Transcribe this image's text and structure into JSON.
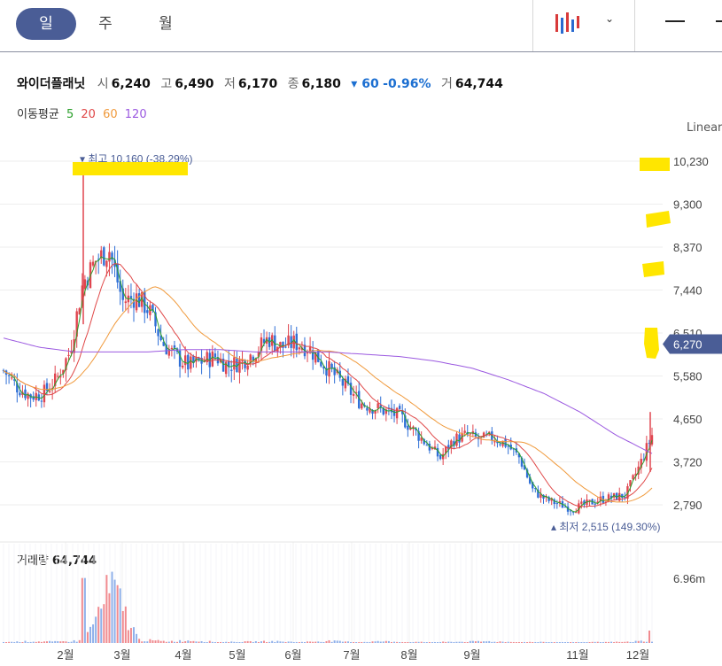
{
  "tabs": [
    "일",
    "주",
    "월"
  ],
  "stock": {
    "name": "와이더플래닛",
    "open_label": "시",
    "open": "6,240",
    "high_label": "고",
    "high": "6,490",
    "low_label": "저",
    "low": "6,170",
    "close_label": "종",
    "close": "6,180",
    "change": "▾ 60",
    "change_pct": "-0.96%",
    "volume_label": "거",
    "volume": "64,744"
  },
  "ma_legend": {
    "label": "이동평균",
    "periods": [
      "5",
      "20",
      "60",
      "120"
    ],
    "colors": [
      "#2ca02c",
      "#e04848",
      "#f09a3c",
      "#9b59e0"
    ]
  },
  "scale_label": "Linear",
  "annotations": {
    "max": "▾ 최고 10,160 (-38.29%)",
    "min": "▴ 최저 2,515 (149.30%)",
    "current_price": "6,270"
  },
  "volume_panel": {
    "label": "거래량",
    "value": "64,744",
    "axis_tick": "6.96m"
  },
  "chart_data": {
    "type": "candlestick",
    "y_ticks": [
      "10,230",
      "9,300",
      "8,370",
      "7,440",
      "6,510",
      "5,580",
      "4,650",
      "3,720",
      "2,790"
    ],
    "y_tick_values": [
      10230,
      9300,
      8370,
      7440,
      6510,
      5580,
      4650,
      3720,
      2790
    ],
    "x_ticks": [
      "2월",
      "3월",
      "4월",
      "5월",
      "6월",
      "7월",
      "8월",
      "9월",
      "11월",
      "12월"
    ],
    "max_price": 10160,
    "min_price": 2515,
    "current": 6270,
    "price_trend_close": [
      5700,
      5350,
      5150,
      5200,
      5500,
      6100,
      7600,
      8100,
      8300,
      7200,
      7300,
      7000,
      6300,
      6000,
      5800,
      5900,
      6000,
      5800,
      5900,
      6100,
      6400,
      6200,
      6300,
      6200,
      5900,
      5600,
      5300,
      5000,
      4900,
      4800,
      4700,
      4400,
      4100,
      3800,
      4200,
      4300,
      4200,
      4250,
      4100,
      3800,
      3100,
      2900,
      2800,
      2700,
      2800,
      2900,
      2950,
      3000,
      3600,
      4300
    ],
    "ma120_trend": [
      6400,
      6200,
      6100,
      6100,
      6100,
      6150,
      6150,
      6100,
      6100,
      6100,
      6050,
      6000,
      5900,
      5750,
      5500,
      5200,
      4800,
      4300,
      3900
    ],
    "volume_trend_m": [
      0.1,
      0.2,
      0.15,
      0.3,
      6.9,
      0.4,
      0.2,
      0.3,
      0.1,
      0.15,
      0.2,
      0.1,
      0.25,
      0.1,
      0.2,
      0.1,
      0.1,
      0.15,
      0.2,
      0.1,
      0.1,
      0.05,
      0.1,
      0.12,
      0.3
    ],
    "volume_y_ticks": [
      "6.96m"
    ]
  }
}
